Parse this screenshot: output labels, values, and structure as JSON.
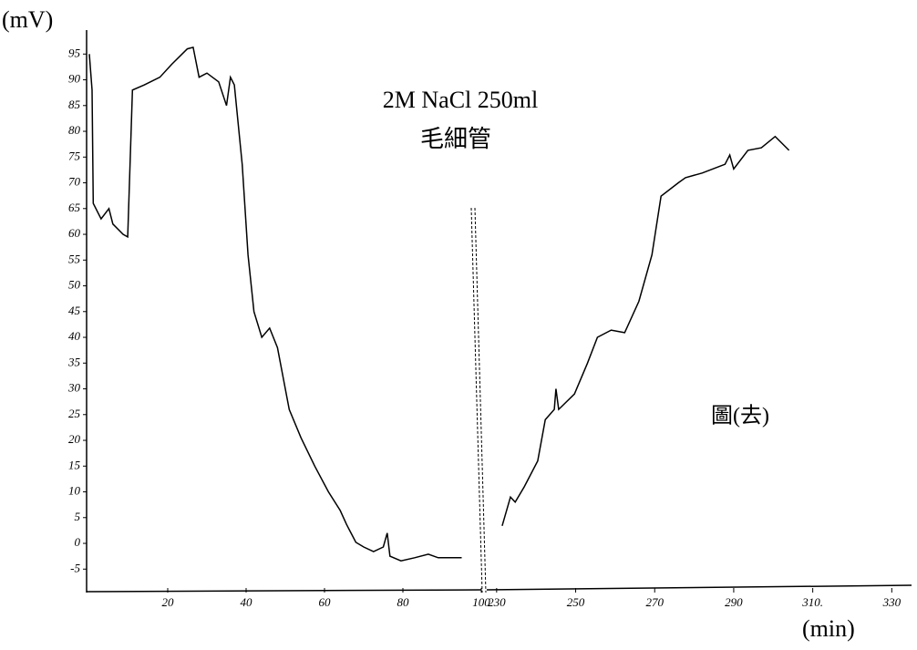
{
  "chart_data": [
    {
      "type": "line",
      "title": "2M  NaCl  250ml",
      "subtitle": "毛細管",
      "y_label": "(mV)",
      "color": "#000000",
      "xlim": [
        0,
        100
      ],
      "xticks": [
        20,
        40,
        60,
        80,
        100
      ],
      "ylim": [
        -9.2,
        99.3
      ],
      "yticks": [
        95,
        90,
        85,
        80,
        75,
        70,
        65,
        60,
        55,
        50,
        45,
        40,
        35,
        30,
        25,
        20,
        15,
        10,
        5,
        0,
        -5
      ],
      "x": [
        0,
        0.7,
        1,
        3,
        5,
        6,
        8.6,
        9.8,
        11,
        14,
        18,
        21,
        25,
        26.5,
        28,
        30,
        33,
        35,
        36,
        37,
        39,
        40.5,
        42,
        44,
        46,
        48,
        51,
        54,
        57.5,
        61,
        64,
        65.6,
        68,
        70,
        72.5,
        75,
        76,
        76.7,
        79.5,
        83,
        86.5,
        89,
        92,
        95
      ],
      "values": [
        95,
        88,
        66,
        63,
        65,
        62,
        60,
        59.5,
        88,
        89,
        90.5,
        93,
        96,
        96.3,
        90.5,
        91.3,
        89.6,
        85,
        90.5,
        89,
        73.6,
        56,
        45,
        40,
        41.8,
        38,
        26,
        20.5,
        15,
        10,
        6.4,
        3.7,
        0.2,
        -0.7,
        -1.6,
        -0.7,
        2,
        -2.5,
        -3.4,
        -2.8,
        -2.1,
        -2.8,
        -2.8,
        -2.8
      ]
    },
    {
      "type": "line",
      "x_label": "(min)",
      "annotation": "圖(去)",
      "color": "#000000",
      "xlim": [
        227.5,
        335
      ],
      "xticks": [
        230,
        250,
        270,
        290,
        {
          "value": 310,
          "label": "310."
        },
        330
      ],
      "ylim": [
        -9.2,
        99.3
      ],
      "x": [
        231.4,
        233.5,
        234.7,
        237,
        240.4,
        242.3,
        244.6,
        245,
        245.7,
        249.7,
        253,
        255.5,
        259,
        262.4,
        266,
        269.3,
        271.6,
        276,
        277.8,
        282,
        287.8,
        289,
        290,
        293.6,
        297,
        300.5,
        304
      ],
      "values": [
        3.4,
        9,
        8,
        11,
        16,
        24,
        26,
        30,
        26,
        29,
        35,
        40,
        41.4,
        40.9,
        47,
        56,
        67.4,
        70,
        71,
        71.9,
        73.6,
        75.4,
        72.7,
        76.3,
        76.8,
        79,
        76.3
      ]
    }
  ]
}
